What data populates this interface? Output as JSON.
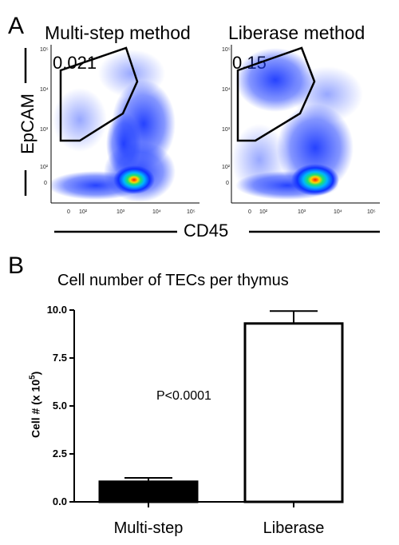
{
  "panel_a": {
    "letter": "A",
    "plots": [
      {
        "title": "Multi-step method",
        "gate_value": "0.021"
      },
      {
        "title": "Liberase method",
        "gate_value": "0.15"
      }
    ],
    "y_axis_label": "EpCAM",
    "x_axis_label": "CD45",
    "y_tick_labels": [
      "10⁵",
      "10⁴",
      "10³",
      "10²",
      "0"
    ],
    "x_tick_labels": [
      "0",
      "10²",
      "10³",
      "10⁴",
      "10⁵"
    ]
  },
  "panel_b": {
    "letter": "B",
    "pvalue_text": "P<0.0001"
  },
  "colors": {
    "multi_step_bar": "#000000",
    "liberase_bar": "#ffffff",
    "density_low": "#0a1aff",
    "density_high": "#ff1a00"
  },
  "chart_data": {
    "type": "bar",
    "title": "Cell number of TECs per thymus",
    "ylabel": "Cell # (x 10",
    "ylabel_sup": "5",
    "ylabel_close": ")",
    "categories": [
      "Multi-step",
      "Liberase"
    ],
    "values": [
      1.05,
      9.3
    ],
    "errors": [
      0.2,
      0.65
    ],
    "ylim": [
      0,
      10
    ],
    "yticks": [
      "0.0",
      "2.5",
      "5.0",
      "7.5",
      "10.0"
    ],
    "ytick_values": [
      0,
      2.5,
      5,
      7.5,
      10
    ]
  }
}
